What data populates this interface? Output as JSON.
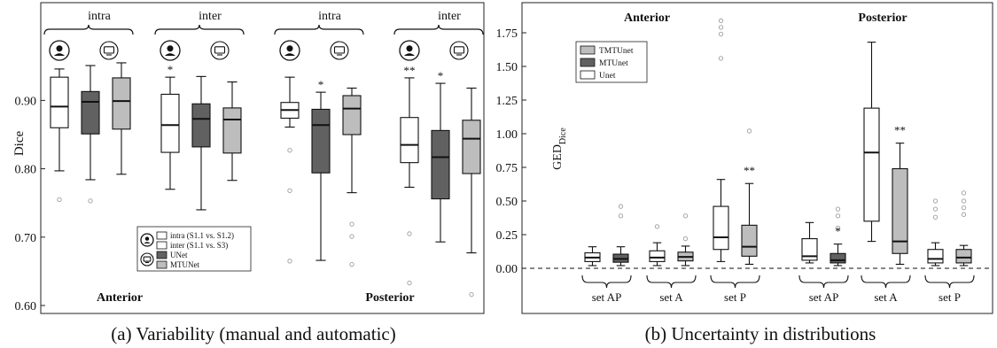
{
  "colors": {
    "white_box": "#ffffff",
    "dark_box": "#616161",
    "light_box": "#bdbdbd",
    "outlier": "#9e9e9e",
    "axis": "#222222"
  },
  "chart_data": [
    {
      "type": "box",
      "caption": "(a) Variability (manual and automatic)",
      "ylabel": "Dice",
      "ylim": [
        0.6,
        1.0
      ],
      "yticks": [
        0.6,
        0.7,
        0.8,
        0.9
      ],
      "ytick_labels": [
        "0.60",
        "0.70",
        "0.80",
        "0.90"
      ],
      "groups": [
        {
          "label": "intra",
          "icons": [
            "person-icon",
            "computer-icon"
          ]
        },
        {
          "label": "inter",
          "icons": [
            "person-icon",
            "computer-icon"
          ]
        },
        {
          "label": "intra",
          "icons": [
            "person-icon",
            "computer-icon"
          ]
        },
        {
          "label": "inter",
          "icons": [
            "person-icon",
            "computer-icon"
          ]
        }
      ],
      "sections": [
        "Anterior",
        "Posterior"
      ],
      "legend": {
        "position": "bottom-center",
        "items": [
          {
            "icon": "person-icon",
            "label": "intra (S1.1 vs. S1.2)",
            "color": "#ffffff"
          },
          {
            "icon": "",
            "label": "inter (S1.1 vs. S3)",
            "color": "#ffffff"
          },
          {
            "icon": "computer-icon",
            "label": "UNet",
            "color": "#616161"
          },
          {
            "icon": "",
            "label": "MTUNet",
            "color": "#bdbdbd"
          }
        ]
      },
      "boxes": [
        {
          "group": 0,
          "fill": "white",
          "whisker_low": 0.797,
          "q1": 0.86,
          "median": 0.891,
          "q3": 0.934,
          "whisker_high": 0.946,
          "outliers": [
            0.755
          ],
          "sig": ""
        },
        {
          "group": 0,
          "fill": "dark",
          "whisker_low": 0.784,
          "q1": 0.851,
          "median": 0.898,
          "q3": 0.913,
          "whisker_high": 0.951,
          "outliers": [
            0.753
          ],
          "sig": ""
        },
        {
          "group": 0,
          "fill": "light",
          "whisker_low": 0.792,
          "q1": 0.858,
          "median": 0.899,
          "q3": 0.933,
          "whisker_high": 0.955,
          "outliers": [],
          "sig": ""
        },
        {
          "group": 1,
          "fill": "white",
          "whisker_low": 0.77,
          "q1": 0.824,
          "median": 0.864,
          "q3": 0.909,
          "whisker_high": 0.934,
          "outliers": [],
          "sig": "*"
        },
        {
          "group": 1,
          "fill": "dark",
          "whisker_low": 0.74,
          "q1": 0.832,
          "median": 0.873,
          "q3": 0.895,
          "whisker_high": 0.935,
          "outliers": [],
          "sig": ""
        },
        {
          "group": 1,
          "fill": "light",
          "whisker_low": 0.783,
          "q1": 0.823,
          "median": 0.872,
          "q3": 0.889,
          "whisker_high": 0.927,
          "outliers": [],
          "sig": ""
        },
        {
          "group": 2,
          "fill": "white",
          "whisker_low": 0.861,
          "q1": 0.874,
          "median": 0.886,
          "q3": 0.897,
          "whisker_high": 0.934,
          "outliers": [
            0.827,
            0.768,
            0.665
          ],
          "sig": ""
        },
        {
          "group": 2,
          "fill": "dark",
          "whisker_low": 0.666,
          "q1": 0.794,
          "median": 0.864,
          "q3": 0.887,
          "whisker_high": 0.912,
          "outliers": [],
          "sig": "*"
        },
        {
          "group": 2,
          "fill": "light",
          "whisker_low": 0.765,
          "q1": 0.85,
          "median": 0.888,
          "q3": 0.907,
          "whisker_high": 0.918,
          "outliers": [
            0.719,
            0.701,
            0.66
          ],
          "sig": ""
        },
        {
          "group": 3,
          "fill": "white",
          "whisker_low": 0.773,
          "q1": 0.809,
          "median": 0.835,
          "q3": 0.875,
          "whisker_high": 0.933,
          "outliers": [
            0.705,
            0.633
          ],
          "sig": "**"
        },
        {
          "group": 3,
          "fill": "dark",
          "whisker_low": 0.693,
          "q1": 0.756,
          "median": 0.817,
          "q3": 0.856,
          "whisker_high": 0.925,
          "outliers": [],
          "sig": "*"
        },
        {
          "group": 3,
          "fill": "light",
          "whisker_low": 0.677,
          "q1": 0.793,
          "median": 0.844,
          "q3": 0.871,
          "whisker_high": 0.918,
          "outliers": [
            0.616
          ],
          "sig": ""
        }
      ]
    },
    {
      "type": "box",
      "caption": "(b) Uncertainty in distributions",
      "ylabel": "GED",
      "ylabel_sub": "Dice",
      "ylim": [
        -0.3,
        1.85
      ],
      "yticks": [
        0.0,
        0.25,
        0.5,
        0.75,
        1.0,
        1.25,
        1.5,
        1.75
      ],
      "ytick_labels": [
        "0.00",
        "0.25",
        "0.50",
        "0.75",
        "1.00",
        "1.25",
        "1.50",
        "1.75"
      ],
      "reference_line": 0.0,
      "sections": [
        "Anterior",
        "Posterior"
      ],
      "groups": [
        {
          "label": "set AP"
        },
        {
          "label": "set A"
        },
        {
          "label": "set P"
        },
        {
          "label": "set AP"
        },
        {
          "label": "set A"
        },
        {
          "label": "set P"
        }
      ],
      "legend": {
        "position": "top-left",
        "items": [
          {
            "label": "TMTUnet",
            "color": "#bdbdbd"
          },
          {
            "label": "MTUnet",
            "color": "#616161"
          },
          {
            "label": "Unet",
            "color": "#ffffff"
          }
        ]
      },
      "boxes": [
        {
          "group": 0,
          "fill": "white",
          "whisker_low": 0.02,
          "q1": 0.05,
          "median": 0.08,
          "q3": 0.115,
          "whisker_high": 0.16,
          "outliers": [],
          "sig": ""
        },
        {
          "group": 0,
          "fill": "dark",
          "whisker_low": 0.02,
          "q1": 0.045,
          "median": 0.07,
          "q3": 0.105,
          "whisker_high": 0.16,
          "outliers": [
            0.46,
            0.39
          ],
          "sig": ""
        },
        {
          "group": 1,
          "fill": "white",
          "whisker_low": 0.02,
          "q1": 0.05,
          "median": 0.08,
          "q3": 0.13,
          "whisker_high": 0.19,
          "outliers": [
            0.31
          ],
          "sig": ""
        },
        {
          "group": 1,
          "fill": "light",
          "whisker_low": 0.02,
          "q1": 0.055,
          "median": 0.085,
          "q3": 0.12,
          "whisker_high": 0.165,
          "outliers": [
            0.39,
            0.22
          ],
          "sig": ""
        },
        {
          "group": 2,
          "fill": "white",
          "whisker_low": 0.05,
          "q1": 0.14,
          "median": 0.23,
          "q3": 0.46,
          "whisker_high": 0.66,
          "outliers": [
            1.84,
            1.79,
            1.74,
            1.56
          ],
          "sig": ""
        },
        {
          "group": 2,
          "fill": "light",
          "whisker_low": 0.03,
          "q1": 0.09,
          "median": 0.16,
          "q3": 0.32,
          "whisker_high": 0.63,
          "outliers": [
            1.02
          ],
          "sig": "**"
        },
        {
          "group": 3,
          "fill": "white",
          "whisker_low": 0.04,
          "q1": 0.06,
          "median": 0.09,
          "q3": 0.22,
          "whisker_high": 0.34,
          "outliers": [],
          "sig": ""
        },
        {
          "group": 3,
          "fill": "dark",
          "whisker_low": 0.02,
          "q1": 0.04,
          "median": 0.06,
          "q3": 0.11,
          "whisker_high": 0.18,
          "outliers": [
            0.44,
            0.39,
            0.3
          ],
          "sig": "*"
        },
        {
          "group": 4,
          "fill": "white",
          "whisker_low": 0.2,
          "q1": 0.35,
          "median": 0.86,
          "q3": 1.19,
          "whisker_high": 1.68,
          "outliers": [],
          "sig": ""
        },
        {
          "group": 4,
          "fill": "light",
          "whisker_low": 0.03,
          "q1": 0.11,
          "median": 0.2,
          "q3": 0.74,
          "whisker_high": 0.93,
          "outliers": [],
          "sig": "**"
        },
        {
          "group": 5,
          "fill": "white",
          "whisker_low": 0.02,
          "q1": 0.04,
          "median": 0.07,
          "q3": 0.14,
          "whisker_high": 0.19,
          "outliers": [
            0.5,
            0.44,
            0.38
          ],
          "sig": ""
        },
        {
          "group": 5,
          "fill": "light",
          "whisker_low": 0.02,
          "q1": 0.04,
          "median": 0.08,
          "q3": 0.14,
          "whisker_high": 0.17,
          "outliers": [
            0.56,
            0.5,
            0.45,
            0.4
          ],
          "sig": ""
        }
      ]
    }
  ]
}
